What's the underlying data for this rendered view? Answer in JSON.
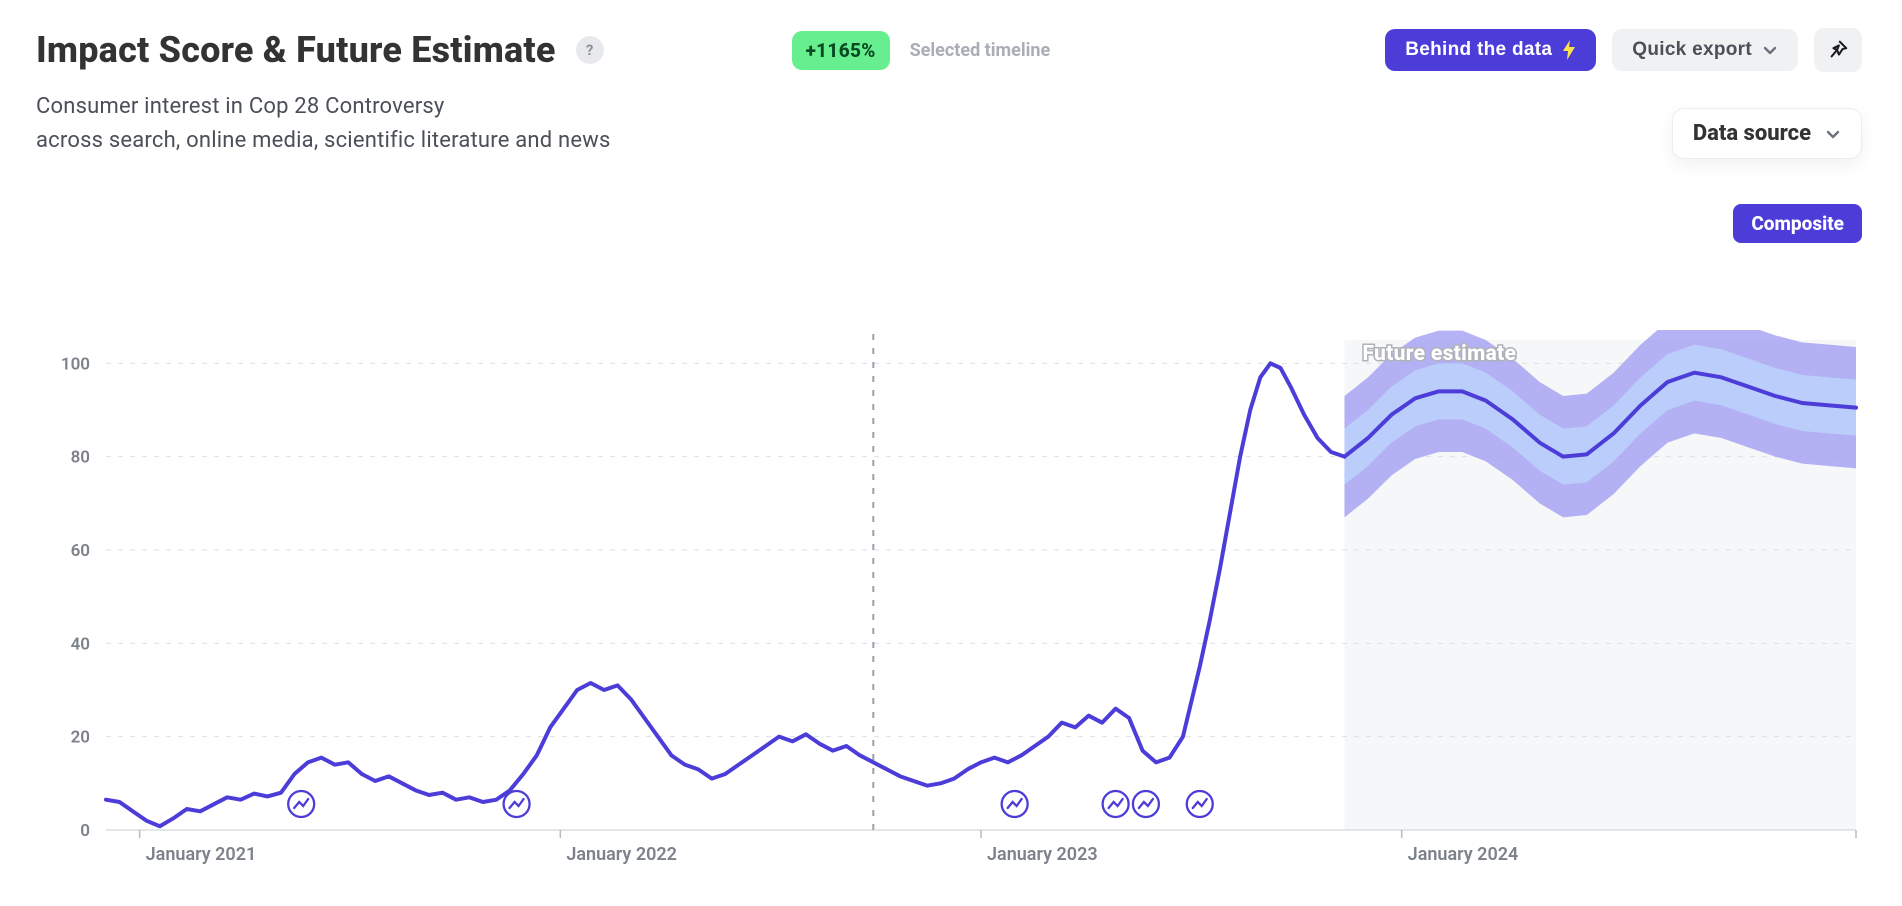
{
  "header": {
    "title": "Impact Score & Future Estimate",
    "help_glyph": "?",
    "pct_change": "+1165%",
    "selected_timeline_label": "Selected timeline",
    "behind_button": "Behind the data",
    "export_button": "Quick export"
  },
  "subtitle": {
    "line1": "Consumer interest in Cop 28 Controversy",
    "line2": "across search, online media, scientific literature and news"
  },
  "datasource": {
    "label": "Data source",
    "composite_label": "Composite"
  },
  "chart": {
    "type": "line",
    "colors": {
      "line": "#4c3dd9",
      "band_outer": "#9c9af2",
      "band_inner": "#bcd0fb",
      "grid": "#dcdfe4",
      "cursor": "#9aa0aa",
      "forecast_bg": "#f2f3f6",
      "background": "#ffffff",
      "axis_text": "#7c818a"
    },
    "y_axis": {
      "min": 0,
      "max": 105,
      "ticks": [
        0,
        20,
        40,
        60,
        80,
        100
      ]
    },
    "x_axis": {
      "t_start": 0,
      "t_end": 52,
      "ticks": [
        {
          "t": 1,
          "label": "January 2021"
        },
        {
          "t": 13.5,
          "label": "January 2022"
        },
        {
          "t": 26,
          "label": "January 2023"
        },
        {
          "t": 38.5,
          "label": "January 2024"
        }
      ]
    },
    "cursor_t": 22.8,
    "forecast_start_t": 36.8,
    "future_label": "Future estimate",
    "line_width": 4,
    "series": [
      [
        0.0,
        6.5
      ],
      [
        0.4,
        6.0
      ],
      [
        0.8,
        4.0
      ],
      [
        1.2,
        2.0
      ],
      [
        1.6,
        0.8
      ],
      [
        2.0,
        2.5
      ],
      [
        2.4,
        4.5
      ],
      [
        2.8,
        4.0
      ],
      [
        3.2,
        5.5
      ],
      [
        3.6,
        7.0
      ],
      [
        4.0,
        6.5
      ],
      [
        4.4,
        7.8
      ],
      [
        4.8,
        7.2
      ],
      [
        5.2,
        8.0
      ],
      [
        5.6,
        12.0
      ],
      [
        6.0,
        14.5
      ],
      [
        6.4,
        15.5
      ],
      [
        6.8,
        14.0
      ],
      [
        7.2,
        14.5
      ],
      [
        7.6,
        12.0
      ],
      [
        8.0,
        10.5
      ],
      [
        8.4,
        11.5
      ],
      [
        8.8,
        10.0
      ],
      [
        9.2,
        8.5
      ],
      [
        9.6,
        7.5
      ],
      [
        10.0,
        8.0
      ],
      [
        10.4,
        6.5
      ],
      [
        10.8,
        7.0
      ],
      [
        11.2,
        6.0
      ],
      [
        11.6,
        6.5
      ],
      [
        12.0,
        8.5
      ],
      [
        12.4,
        12.0
      ],
      [
        12.8,
        16.0
      ],
      [
        13.2,
        22.0
      ],
      [
        13.6,
        26.0
      ],
      [
        14.0,
        30.0
      ],
      [
        14.4,
        31.5
      ],
      [
        14.8,
        30.0
      ],
      [
        15.2,
        31.0
      ],
      [
        15.6,
        28.0
      ],
      [
        16.0,
        24.0
      ],
      [
        16.4,
        20.0
      ],
      [
        16.8,
        16.0
      ],
      [
        17.2,
        14.0
      ],
      [
        17.6,
        13.0
      ],
      [
        18.0,
        11.0
      ],
      [
        18.4,
        12.0
      ],
      [
        18.8,
        14.0
      ],
      [
        19.2,
        16.0
      ],
      [
        19.6,
        18.0
      ],
      [
        20.0,
        20.0
      ],
      [
        20.4,
        19.0
      ],
      [
        20.8,
        20.5
      ],
      [
        21.2,
        18.5
      ],
      [
        21.6,
        17.0
      ],
      [
        22.0,
        18.0
      ],
      [
        22.4,
        16.0
      ],
      [
        22.8,
        14.5
      ],
      [
        23.2,
        13.0
      ],
      [
        23.6,
        11.5
      ],
      [
        24.0,
        10.5
      ],
      [
        24.4,
        9.5
      ],
      [
        24.8,
        10.0
      ],
      [
        25.2,
        11.0
      ],
      [
        25.6,
        13.0
      ],
      [
        26.0,
        14.5
      ],
      [
        26.4,
        15.5
      ],
      [
        26.8,
        14.5
      ],
      [
        27.2,
        16.0
      ],
      [
        27.6,
        18.0
      ],
      [
        28.0,
        20.0
      ],
      [
        28.4,
        23.0
      ],
      [
        28.8,
        22.0
      ],
      [
        29.2,
        24.5
      ],
      [
        29.6,
        23.0
      ],
      [
        30.0,
        26.0
      ],
      [
        30.4,
        24.0
      ],
      [
        30.8,
        17.0
      ],
      [
        31.2,
        14.5
      ],
      [
        31.6,
        15.5
      ],
      [
        32.0,
        20.0
      ],
      [
        32.2,
        26.0
      ],
      [
        32.5,
        35.0
      ],
      [
        32.8,
        45.0
      ],
      [
        33.1,
        56.0
      ],
      [
        33.4,
        68.0
      ],
      [
        33.7,
        80.0
      ],
      [
        34.0,
        90.0
      ],
      [
        34.3,
        97.0
      ],
      [
        34.6,
        100.0
      ],
      [
        34.9,
        99.0
      ],
      [
        35.2,
        95.0
      ],
      [
        35.6,
        89.0
      ],
      [
        36.0,
        84.0
      ],
      [
        36.4,
        81.0
      ],
      [
        36.8,
        80.0
      ]
    ],
    "forecast_mean": [
      [
        36.8,
        80.0
      ],
      [
        37.5,
        84.0
      ],
      [
        38.2,
        89.0
      ],
      [
        38.9,
        92.5
      ],
      [
        39.6,
        94.0
      ],
      [
        40.3,
        94.0
      ],
      [
        41.0,
        92.0
      ],
      [
        41.8,
        88.0
      ],
      [
        42.6,
        83.0
      ],
      [
        43.3,
        80.0
      ],
      [
        44.0,
        80.5
      ],
      [
        44.8,
        85.0
      ],
      [
        45.6,
        91.0
      ],
      [
        46.4,
        96.0
      ],
      [
        47.2,
        98.0
      ],
      [
        48.0,
        97.0
      ],
      [
        48.8,
        95.0
      ],
      [
        49.6,
        93.0
      ],
      [
        50.4,
        91.5
      ],
      [
        51.2,
        91.0
      ],
      [
        52.0,
        90.5
      ]
    ],
    "forecast_band_inner": 6,
    "forecast_band_outer": 13,
    "event_markers_t": [
      5.8,
      12.2,
      27.0,
      30.0,
      30.9,
      32.5
    ]
  }
}
